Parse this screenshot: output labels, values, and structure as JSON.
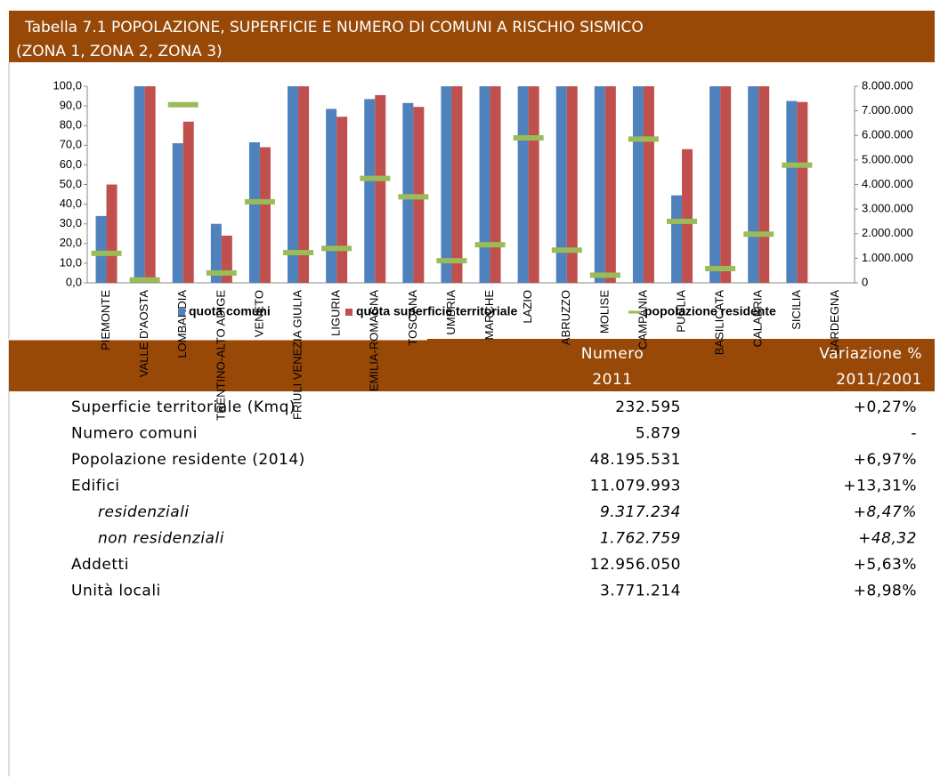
{
  "title": {
    "line1": "Tabella 7.1 POPOLAZIONE, SUPERFICIE E NUMERO DI COMUNI A RISCHIO SISMICO",
    "line2": "(ZONA 1, ZONA 2, ZONA 3)"
  },
  "chart_data": {
    "type": "bar",
    "categories": [
      "PIEMONTE",
      "VALLE D'AOSTA",
      "LOMBARDIA",
      "TRENTINO-ALTO ADIGE",
      "VENETO",
      "FRIULI VENEZIA GIULIA",
      "LIGURIA",
      "EMILIA-ROMAGNA",
      "TOSCANA",
      "UMBRIA",
      "MARCHE",
      "LAZIO",
      "ABRUZZO",
      "MOLISE",
      "CAMPANIA",
      "PUGLIA",
      "BASILICATA",
      "CALABRIA",
      "SICILIA",
      "SARDEGNA"
    ],
    "series": [
      {
        "name": "quota comuni",
        "type": "bar",
        "color": "#4f81bd",
        "values": [
          34,
          100,
          71,
          30,
          71.5,
          100,
          88.5,
          93.5,
          91.5,
          100,
          100,
          100,
          100,
          100,
          100,
          44.5,
          100,
          100,
          92.5,
          0
        ]
      },
      {
        "name": "quota superficie territoriale",
        "type": "bar",
        "color": "#c0504d",
        "values": [
          50,
          100,
          82,
          24,
          69,
          100,
          84.5,
          95.5,
          89.5,
          100,
          100,
          100,
          100,
          100,
          100,
          68,
          100,
          100,
          92,
          0
        ]
      },
      {
        "name": "popolazione residente",
        "type": "dash",
        "axis": "y2",
        "color": "#9bbb59",
        "values": [
          1200000,
          120000,
          7250000,
          400000,
          3300000,
          1230000,
          1400000,
          4250000,
          3500000,
          900000,
          1550000,
          5900000,
          1330000,
          310000,
          5850000,
          2500000,
          580000,
          1980000,
          4790000,
          null
        ]
      }
    ],
    "ylim": [
      0,
      100
    ],
    "yticks": [
      {
        "value": 0,
        "label": "0,0"
      },
      {
        "value": 10,
        "label": "10,0"
      },
      {
        "value": 20,
        "label": "20,0"
      },
      {
        "value": 30,
        "label": "30,0"
      },
      {
        "value": 40,
        "label": "40,0"
      },
      {
        "value": 50,
        "label": "50,0"
      },
      {
        "value": 60,
        "label": "60,0"
      },
      {
        "value": 70,
        "label": "70,0"
      },
      {
        "value": 80,
        "label": "80,0"
      },
      {
        "value": 90,
        "label": "90,0"
      },
      {
        "value": 100,
        "label": "100,0"
      }
    ],
    "y2lim": [
      0,
      8000000
    ],
    "y2ticks": [
      0,
      {
        "value": 1000000,
        "label": "1.000.000"
      },
      {
        "value": 2000000,
        "label": "2.000.000"
      },
      {
        "value": 3000000,
        "label": "3.000.000"
      },
      {
        "value": 4000000,
        "label": "4.000.000"
      },
      {
        "value": 5000000,
        "label": "5.000.000"
      },
      {
        "value": 6000000,
        "label": "6.000.000"
      },
      {
        "value": 7000000,
        "label": "7.000.000"
      },
      {
        "value": 8000000,
        "label": "8.000.000"
      }
    ],
    "legend": "bottom",
    "grid": false
  },
  "table": {
    "columns": [
      {
        "line1": "Numero",
        "line2": "2011"
      },
      {
        "line1": "Variazione %",
        "line2": "2011/2001"
      }
    ],
    "rows": [
      {
        "label": "Superficie territoriale (Kmq)",
        "value": "232.595",
        "change": "+0,27%",
        "italic": false
      },
      {
        "label": "Numero comuni",
        "value": "5.879",
        "change": "-",
        "italic": false
      },
      {
        "label": "Popolazione residente (2014)",
        "value": "48.195.531",
        "change": "+6,97%",
        "italic": false
      },
      {
        "label": "Edifici",
        "value": "11.079.993",
        "change": "+13,31%",
        "italic": false
      },
      {
        "label": "residenziali",
        "value": "9.317.234",
        "change": "+8,47%",
        "italic": true
      },
      {
        "label": "non residenziali",
        "value": "1.762.759",
        "change": "+48,32",
        "italic": true
      },
      {
        "label": "Addetti",
        "value": "12.956.050",
        "change": "+5,63%",
        "italic": false
      },
      {
        "label": "Unità locali",
        "value": "3.771.214",
        "change": "+8,98%",
        "italic": false
      }
    ]
  }
}
